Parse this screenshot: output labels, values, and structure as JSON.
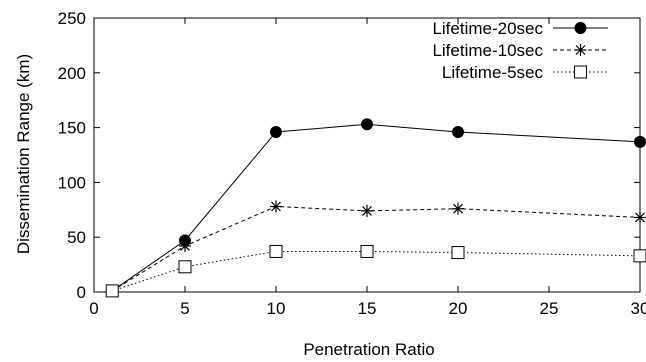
{
  "chart_data": {
    "type": "line",
    "title": "",
    "xlabel": "Penetration Ratio",
    "ylabel": "Dissemination Range (km)",
    "xlim": [
      0,
      30
    ],
    "ylim": [
      0,
      250
    ],
    "xticks": [
      0,
      5,
      10,
      15,
      20,
      25,
      30
    ],
    "yticks": [
      0,
      50,
      100,
      150,
      200,
      250
    ],
    "xtick_labels": [
      "0",
      "5",
      "10",
      "15",
      "20",
      "25",
      "30"
    ],
    "ytick_labels": [
      "0",
      "50",
      "100",
      "150",
      "200",
      "250"
    ],
    "grid": false,
    "legend_position": "top-right",
    "series": [
      {
        "name": "Lifetime-20sec",
        "marker": "filled-circle",
        "line": "solid",
        "x": [
          1,
          5,
          10,
          15,
          20,
          30
        ],
        "y": [
          1,
          47,
          146,
          153,
          146,
          137
        ]
      },
      {
        "name": "Lifetime-10sec",
        "marker": "asterisk",
        "line": "dashed",
        "x": [
          1,
          5,
          10,
          15,
          20,
          30
        ],
        "y": [
          1,
          42,
          78,
          74,
          76,
          68
        ]
      },
      {
        "name": "Lifetime-5sec",
        "marker": "open-square",
        "line": "dotted",
        "x": [
          1,
          5,
          10,
          15,
          20,
          30
        ],
        "y": [
          1,
          23,
          37,
          37,
          36,
          33
        ]
      }
    ]
  }
}
